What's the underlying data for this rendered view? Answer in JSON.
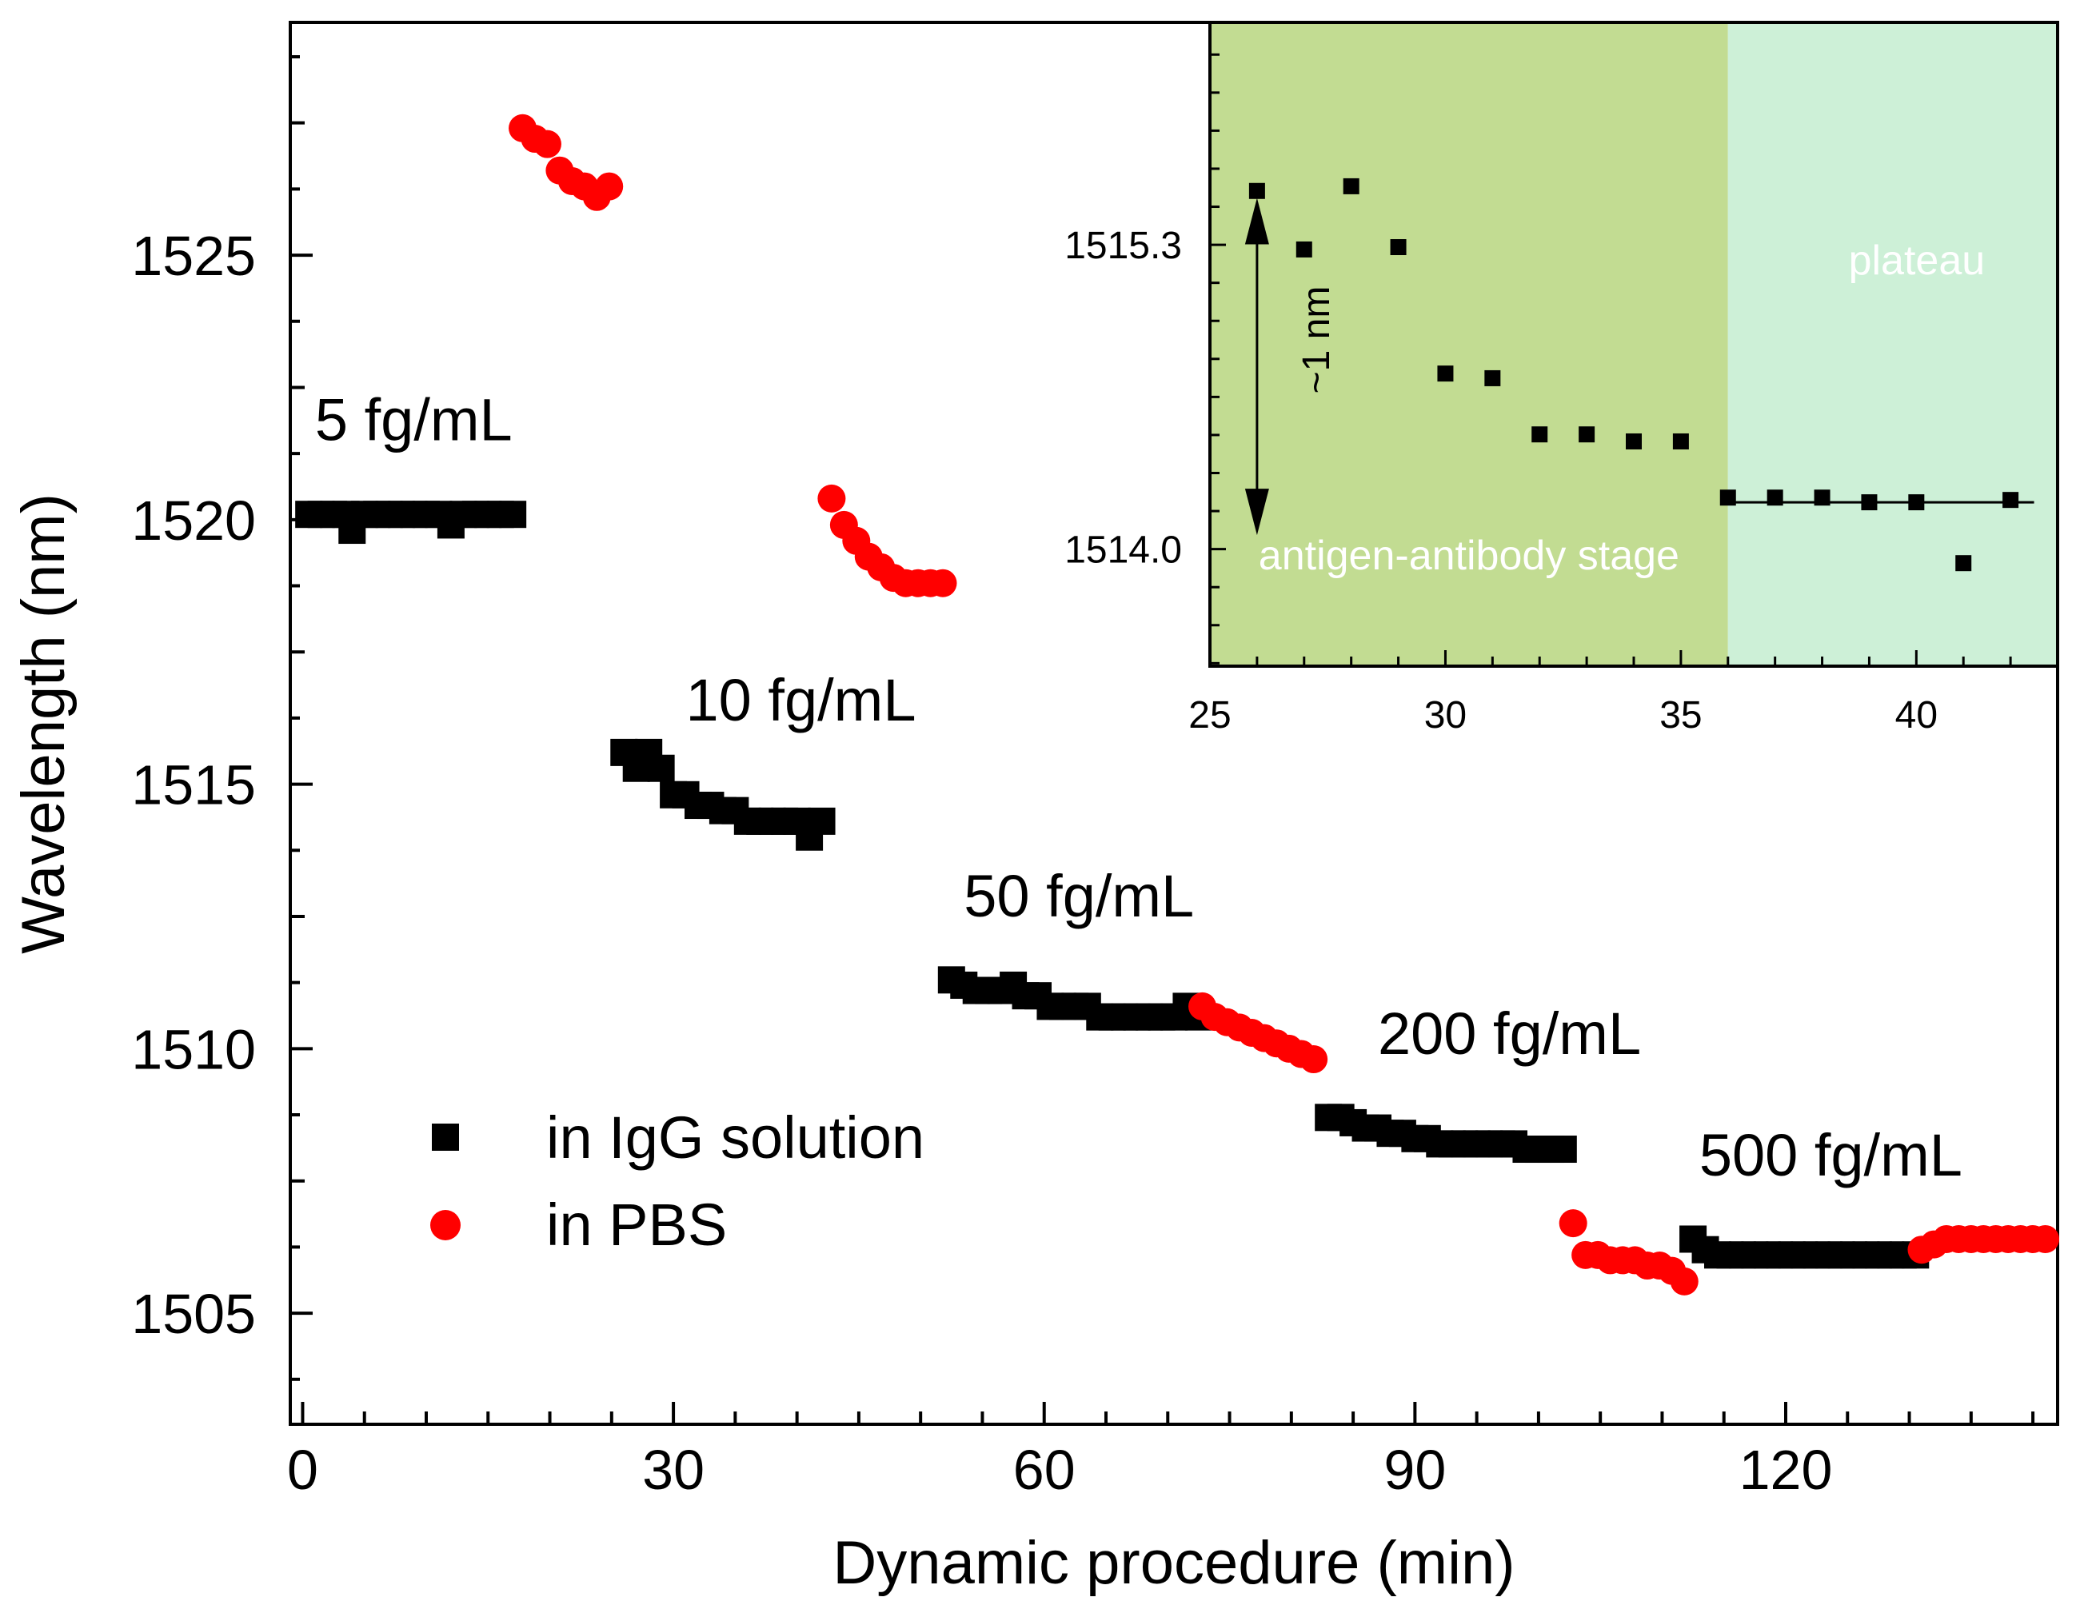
{
  "chart_data": [
    {
      "type": "scatter",
      "xlabel": "Dynamic procedure (min)",
      "ylabel": "Wavelength (nm)",
      "xlim": [
        -1,
        142
      ],
      "ylim": [
        1502.9,
        1529.4
      ],
      "xticks": [
        0,
        30,
        60,
        90,
        120
      ],
      "yticks": [
        1505,
        1510,
        1515,
        1520,
        1525
      ],
      "xtick_labels": [
        "0",
        "30",
        "60",
        "90",
        "120"
      ],
      "ytick_labels": [
        "1505",
        "1510",
        "1515",
        "1520",
        "1525"
      ],
      "grid": false,
      "legend_position": "lower-left",
      "annotations": [
        {
          "text": "5 fg/mL",
          "x": 1.0,
          "y": 1521.5
        },
        {
          "text": "10 fg/mL",
          "x": 31.0,
          "y": 1516.2
        },
        {
          "text": "50 fg/mL",
          "x": 53.5,
          "y": 1512.5
        },
        {
          "text": "200 fg/mL",
          "x": 87.0,
          "y": 1509.9
        },
        {
          "text": "500 fg/mL",
          "x": 113.0,
          "y": 1507.6
        }
      ],
      "series": [
        {
          "name": "in IgG solution",
          "marker": "square",
          "color": "#000000",
          "points": [
            [
              0.5,
              1520.1
            ],
            [
              1.5,
              1520.1
            ],
            [
              2.5,
              1520.1
            ],
            [
              3.5,
              1520.1
            ],
            [
              4.0,
              1519.8
            ],
            [
              5.0,
              1520.1
            ],
            [
              6.0,
              1520.1
            ],
            [
              7.0,
              1520.1
            ],
            [
              8.0,
              1520.1
            ],
            [
              9.0,
              1520.1
            ],
            [
              10.0,
              1520.1
            ],
            [
              11.0,
              1520.1
            ],
            [
              12.0,
              1519.9
            ],
            [
              13.0,
              1520.1
            ],
            [
              14.0,
              1520.1
            ],
            [
              15.0,
              1520.1
            ],
            [
              16.0,
              1520.1
            ],
            [
              17.0,
              1520.1
            ],
            [
              26.0,
              1515.6
            ],
            [
              27.0,
              1515.3
            ],
            [
              28.0,
              1515.6
            ],
            [
              29.0,
              1515.3
            ],
            [
              30.0,
              1514.8
            ],
            [
              31.0,
              1514.8
            ],
            [
              32.0,
              1514.6
            ],
            [
              33.0,
              1514.6
            ],
            [
              34.0,
              1514.5
            ],
            [
              35.0,
              1514.5
            ],
            [
              36.0,
              1514.3
            ],
            [
              37.0,
              1514.3
            ],
            [
              38.0,
              1514.3
            ],
            [
              39.0,
              1514.3
            ],
            [
              40.0,
              1514.3
            ],
            [
              41.0,
              1514.0
            ],
            [
              42.0,
              1514.3
            ],
            [
              52.5,
              1511.3
            ],
            [
              53.5,
              1511.2
            ],
            [
              54.5,
              1511.1
            ],
            [
              55.5,
              1511.1
            ],
            [
              56.5,
              1511.1
            ],
            [
              57.5,
              1511.2
            ],
            [
              58.5,
              1511.0
            ],
            [
              59.5,
              1511.0
            ],
            [
              60.5,
              1510.8
            ],
            [
              61.5,
              1510.8
            ],
            [
              62.5,
              1510.8
            ],
            [
              63.5,
              1510.8
            ],
            [
              64.5,
              1510.6
            ],
            [
              65.5,
              1510.6
            ],
            [
              66.5,
              1510.6
            ],
            [
              67.5,
              1510.6
            ],
            [
              68.5,
              1510.6
            ],
            [
              69.5,
              1510.6
            ],
            [
              70.5,
              1510.6
            ],
            [
              71.5,
              1510.8
            ],
            [
              72.5,
              1510.6
            ],
            [
              83.0,
              1508.7
            ],
            [
              84.0,
              1508.7
            ],
            [
              85.0,
              1508.6
            ],
            [
              86.0,
              1508.5
            ],
            [
              87.0,
              1508.5
            ],
            [
              88.0,
              1508.4
            ],
            [
              89.0,
              1508.4
            ],
            [
              90.0,
              1508.3
            ],
            [
              91.0,
              1508.3
            ],
            [
              92.0,
              1508.2
            ],
            [
              93.0,
              1508.2
            ],
            [
              94.0,
              1508.2
            ],
            [
              95.0,
              1508.2
            ],
            [
              96.0,
              1508.2
            ],
            [
              97.0,
              1508.2
            ],
            [
              98.0,
              1508.2
            ],
            [
              99.0,
              1508.1
            ],
            [
              100.0,
              1508.1
            ],
            [
              101.0,
              1508.1
            ],
            [
              102.0,
              1508.1
            ],
            [
              112.5,
              1506.4
            ],
            [
              113.5,
              1506.2
            ],
            [
              114.5,
              1506.1
            ],
            [
              115.5,
              1506.1
            ],
            [
              116.5,
              1506.1
            ],
            [
              117.5,
              1506.1
            ],
            [
              118.5,
              1506.1
            ],
            [
              119.5,
              1506.1
            ],
            [
              120.5,
              1506.1
            ],
            [
              121.5,
              1506.1
            ],
            [
              122.5,
              1506.1
            ],
            [
              123.5,
              1506.1
            ],
            [
              124.5,
              1506.1
            ],
            [
              125.5,
              1506.1
            ],
            [
              126.5,
              1506.1
            ],
            [
              127.5,
              1506.1
            ],
            [
              128.5,
              1506.1
            ],
            [
              129.5,
              1506.1
            ],
            [
              130.5,
              1506.1
            ]
          ]
        },
        {
          "name": "in PBS",
          "marker": "circle",
          "color": "#ff0000",
          "points": [
            [
              17.8,
              1527.4
            ],
            [
              18.8,
              1527.2
            ],
            [
              19.8,
              1527.1
            ],
            [
              20.8,
              1526.6
            ],
            [
              21.8,
              1526.4
            ],
            [
              22.8,
              1526.3
            ],
            [
              23.8,
              1526.1
            ],
            [
              24.8,
              1526.3
            ],
            [
              42.8,
              1520.4
            ],
            [
              43.8,
              1519.9
            ],
            [
              44.8,
              1519.6
            ],
            [
              45.8,
              1519.3
            ],
            [
              46.8,
              1519.1
            ],
            [
              47.8,
              1518.9
            ],
            [
              48.8,
              1518.8
            ],
            [
              49.8,
              1518.8
            ],
            [
              50.8,
              1518.8
            ],
            [
              51.8,
              1518.8
            ],
            [
              72.8,
              1510.8
            ],
            [
              73.8,
              1510.6
            ],
            [
              74.8,
              1510.5
            ],
            [
              75.8,
              1510.4
            ],
            [
              76.8,
              1510.3
            ],
            [
              77.8,
              1510.2
            ],
            [
              78.8,
              1510.1
            ],
            [
              79.8,
              1510.0
            ],
            [
              80.8,
              1509.9
            ],
            [
              81.8,
              1509.8
            ],
            [
              102.8,
              1506.7
            ],
            [
              103.8,
              1506.1
            ],
            [
              104.8,
              1506.1
            ],
            [
              105.8,
              1506.0
            ],
            [
              106.8,
              1506.0
            ],
            [
              107.8,
              1506.0
            ],
            [
              108.8,
              1505.9
            ],
            [
              109.8,
              1505.9
            ],
            [
              110.8,
              1505.8
            ],
            [
              111.8,
              1505.6
            ],
            [
              131.0,
              1506.2
            ],
            [
              132.0,
              1506.3
            ],
            [
              133.0,
              1506.4
            ],
            [
              134.0,
              1506.4
            ],
            [
              135.0,
              1506.4
            ],
            [
              136.0,
              1506.4
            ],
            [
              137.0,
              1506.4
            ],
            [
              138.0,
              1506.4
            ],
            [
              139.0,
              1506.4
            ],
            [
              140.0,
              1506.4
            ],
            [
              141.0,
              1506.4
            ]
          ]
        }
      ]
    },
    {
      "type": "scatter",
      "position": "top-right inset",
      "xlim": [
        25,
        43
      ],
      "ylim": [
        1513.5,
        1516.25
      ],
      "xticks": [
        25,
        30,
        35,
        40
      ],
      "yticks": [
        1514.0,
        1515.3
      ],
      "xtick_labels": [
        "25",
        "30",
        "35",
        "40"
      ],
      "ytick_labels": [
        "1514.0",
        "1515.3"
      ],
      "grid": false,
      "regions": [
        {
          "label": "antigen-antibody stage",
          "x0": 25,
          "x1": 36,
          "color": "#c2dc92"
        },
        {
          "label": "plateau",
          "x0": 36,
          "x1": 43,
          "color": "#cdf0d7"
        }
      ],
      "annotations": [
        {
          "text": "~1 nm",
          "type": "double-arrow",
          "x": 26,
          "y_from": 1515.5,
          "y_to": 1514.06
        }
      ],
      "fit_line": {
        "x0": 36,
        "x1": 42.5,
        "y": 1514.2
      },
      "series": [
        {
          "marker": "square",
          "color": "#000000",
          "points": [
            [
              26,
              1515.53
            ],
            [
              27,
              1515.28
            ],
            [
              28,
              1515.55
            ],
            [
              29,
              1515.29
            ],
            [
              30,
              1514.75
            ],
            [
              31,
              1514.73
            ],
            [
              32,
              1514.49
            ],
            [
              33,
              1514.49
            ],
            [
              34,
              1514.46
            ],
            [
              35,
              1514.46
            ],
            [
              36,
              1514.22
            ],
            [
              37,
              1514.22
            ],
            [
              38,
              1514.22
            ],
            [
              39,
              1514.2
            ],
            [
              40,
              1514.2
            ],
            [
              41,
              1513.94
            ],
            [
              42,
              1514.21
            ]
          ]
        }
      ]
    }
  ],
  "legend": {
    "items": [
      {
        "label": "in IgG solution",
        "marker": "square",
        "color": "#000000"
      },
      {
        "label": "in PBS",
        "marker": "circle",
        "color": "#ff0000"
      }
    ]
  }
}
